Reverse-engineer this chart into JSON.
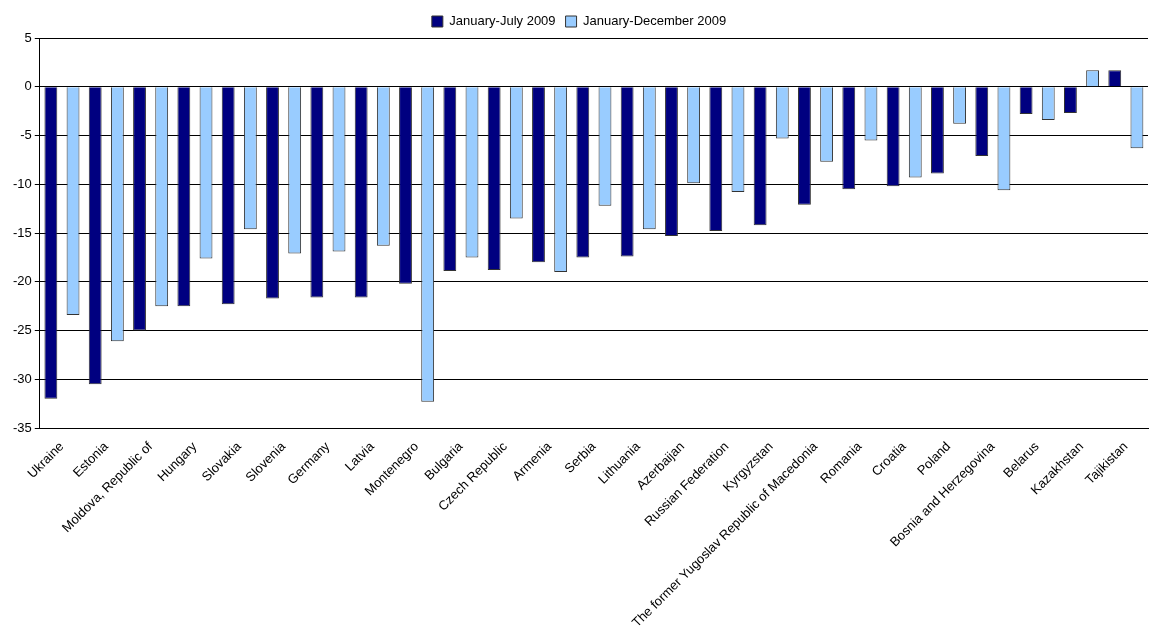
{
  "chart_data": {
    "type": "bar",
    "categories": [
      "Ukraine",
      "Estonia",
      "Moldova, Republic of",
      "Hungary",
      "Slovakia",
      "Slovenia",
      "Germany",
      "Latvia",
      "Montenegro",
      "Bulgaria",
      "Czech Republic",
      "Armenia",
      "Serbia",
      "Lithuania",
      "Azerbaijan",
      "Russian Federation",
      "Kyrgyzstan",
      "The former Yugoslav Republic of Macedonia",
      "Romania",
      "Croatia",
      "Poland",
      "Bosnia and Herzegovina",
      "Belarus",
      "Kazakhstan",
      "Tajikistan"
    ],
    "series": [
      {
        "name": "January-July 2009",
        "color": "#000080",
        "values": [
          -32,
          -30.5,
          -25,
          -22.5,
          -22.3,
          -21.7,
          -21.6,
          -21.6,
          -20.2,
          -18.9,
          -18.8,
          -18,
          -17.5,
          -17.4,
          -15.3,
          -14.8,
          -14.2,
          -12.1,
          -10.5,
          -10.2,
          -8.9,
          -7.1,
          -2.8,
          -2.7,
          1.7
        ]
      },
      {
        "name": "January-December 2009",
        "color": "#99ccff",
        "values": [
          -23.4,
          -26.1,
          -22.5,
          -17.6,
          -14.6,
          -17.1,
          -16.9,
          -16.3,
          -32.3,
          -17.5,
          -13.5,
          -19,
          -12.2,
          -14.6,
          -9.9,
          -10.8,
          -5.3,
          -7.7,
          -5.5,
          -9.3,
          -3.8,
          -10.6,
          -3.4,
          1.7,
          -6.3
        ]
      }
    ],
    "ylim": [
      -35,
      5
    ],
    "yticks": [
      -35,
      -30,
      -25,
      -20,
      -15,
      -10,
      -5,
      0,
      5
    ],
    "grid": "y",
    "legend": "top"
  }
}
